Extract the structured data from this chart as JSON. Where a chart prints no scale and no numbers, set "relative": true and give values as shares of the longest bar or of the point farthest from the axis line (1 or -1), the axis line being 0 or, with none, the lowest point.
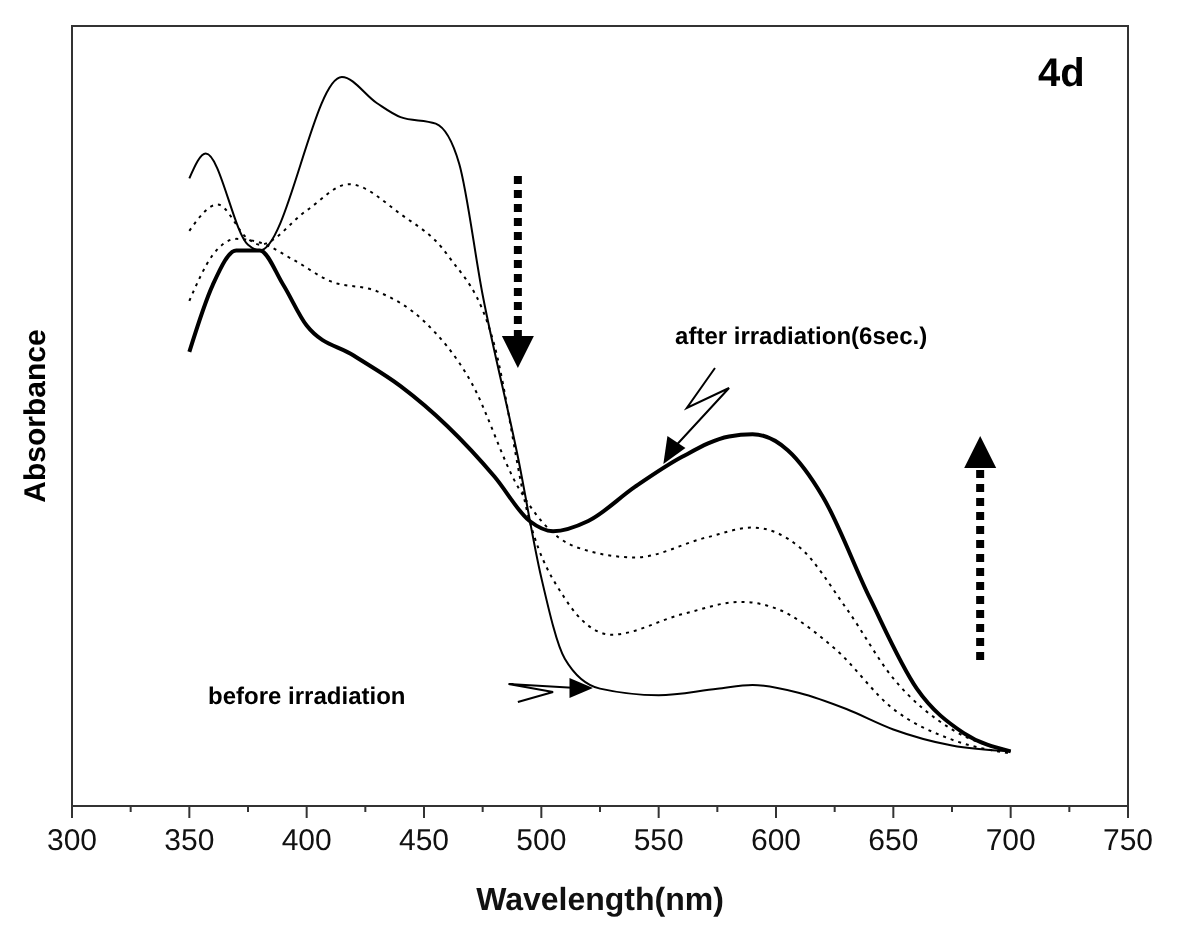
{
  "chart_data": {
    "type": "line",
    "relative": true,
    "xlabel": "Wavelength(nm)",
    "ylabel": "Absorbance",
    "xlim": [
      300,
      750
    ],
    "xticks": [
      300,
      {
        "value": 325,
        "label": null
      },
      350,
      {
        "value": 375,
        "label": null
      },
      400,
      {
        "value": 425,
        "label": null
      },
      450,
      {
        "value": 475,
        "label": null
      },
      500,
      {
        "value": 525,
        "label": null
      },
      550,
      {
        "value": 575,
        "label": null
      },
      600,
      {
        "value": 625,
        "label": null
      },
      650,
      {
        "value": 675,
        "label": null
      },
      700,
      {
        "value": 725,
        "label": null
      },
      750
    ],
    "series": [
      {
        "color": "#000000",
        "line_style": "solid",
        "x": [
          350,
          357,
          375,
          380,
          415,
          430,
          440,
          455,
          465,
          475,
          490,
          500,
          510,
          525,
          550,
          575,
          590,
          610,
          630,
          650,
          675,
          700
        ],
        "values": [
          0.861,
          0.895,
          0.77,
          0.762,
          1,
          0.964,
          0.945,
          0.936,
          0.881,
          0.701,
          0.479,
          0.313,
          0.202,
          0.161,
          0.152,
          0.161,
          0.166,
          0.155,
          0.133,
          0.105,
          0.083,
          0.075
        ]
      },
      {
        "color": "#000000",
        "line_style": "dotted",
        "x": [
          350,
          362,
          375,
          380,
          400,
          418,
          440,
          460,
          480,
          495,
          510,
          530,
          560,
          585,
          600,
          625,
          650,
          675,
          700
        ],
        "values": [
          0.789,
          0.825,
          0.778,
          0.77,
          0.817,
          0.853,
          0.812,
          0.756,
          0.632,
          0.391,
          0.285,
          0.235,
          0.263,
          0.28,
          0.271,
          0.216,
          0.133,
          0.091,
          0.072
        ]
      },
      {
        "color": "#000000",
        "line_style": "dotted",
        "x": [
          350,
          360,
          370,
          380,
          395,
          410,
          430,
          450,
          470,
          490,
          500,
          515,
          540,
          570,
          590,
          610,
          630,
          650,
          675,
          700
        ],
        "values": [
          0.693,
          0.756,
          0.778,
          0.773,
          0.748,
          0.72,
          0.706,
          0.665,
          0.582,
          0.438,
          0.391,
          0.355,
          0.341,
          0.368,
          0.382,
          0.355,
          0.271,
          0.175,
          0.105,
          0.075
        ]
      },
      {
        "color": "#000000",
        "line_style": "solid",
        "x": [
          350,
          360,
          370,
          380,
          390,
          400,
          420,
          440,
          460,
          480,
          495,
          505,
          520,
          540,
          560,
          580,
          590,
          605,
          620,
          640,
          660,
          680,
          700
        ],
        "values": [
          0.623,
          0.715,
          0.762,
          0.762,
          0.715,
          0.659,
          0.618,
          0.576,
          0.521,
          0.452,
          0.391,
          0.377,
          0.391,
          0.438,
          0.479,
          0.507,
          0.51,
          0.488,
          0.424,
          0.285,
          0.161,
          0.1,
          0.075
        ]
      }
    ],
    "annotations": [
      "4d",
      "after irradiation(6sec.)",
      "before irradiation"
    ]
  }
}
